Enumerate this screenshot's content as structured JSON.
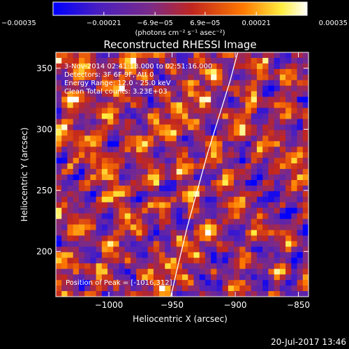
{
  "chart_data": {
    "type": "heatmap",
    "title": "Reconstructed RHESSI Image",
    "xlabel": "Heliocentric X (arcsec)",
    "ylabel": "Heliocentric Y (arcsec)",
    "xlim": [
      -1042,
      -842
    ],
    "ylim": [
      163,
      363
    ],
    "x_ticks": [
      -1000,
      -950,
      -900,
      -850
    ],
    "x_tick_labels": [
      "−1000",
      "−950",
      "−900",
      "−850"
    ],
    "y_ticks": [
      200,
      250,
      300,
      350
    ],
    "y_tick_labels": [
      "200",
      "250",
      "300",
      "350"
    ],
    "colorbar": {
      "range": [
        -0.00035,
        0.00035
      ],
      "ticks": [
        -0.00035,
        -0.00021,
        -6.9e-05,
        6.9e-05,
        0.00021,
        0.00035
      ],
      "tick_labels": [
        "−0.00035",
        "−0.00021",
        "−6.9e−05",
        "6.9e−05",
        "0.00021",
        "0.00035"
      ],
      "unit_label": "(photons cm⁻² s⁻¹ asec⁻²)",
      "colors": [
        "#0000ff",
        "#5a1fb0",
        "#7a2a8a",
        "#c2261e",
        "#ff7a00",
        "#ffee40",
        "#ffffff"
      ]
    },
    "annotations": {
      "time_range": "3-Nov-2014 02:41:18.000 to 02:51:16.000",
      "detectors": "Detectors: 3F 6F 9F, Att 0",
      "energy": "Energy Range: 12.0 - 25.0 keV",
      "method": "Clean    Total counts: 3.23E+03",
      "peak": "Position of Peak = [-1016,312]"
    },
    "limb_curve": [
      [
        -951,
        163
      ],
      [
        -945,
        190
      ],
      [
        -938,
        220
      ],
      [
        -930,
        250
      ],
      [
        -922,
        280
      ],
      [
        -913,
        310
      ],
      [
        -904,
        340
      ],
      [
        -898,
        363
      ]
    ],
    "grid_size": [
      44,
      44
    ],
    "grid": false
  },
  "footer": {
    "timestamp": "20-Jul-2017 13:46"
  }
}
